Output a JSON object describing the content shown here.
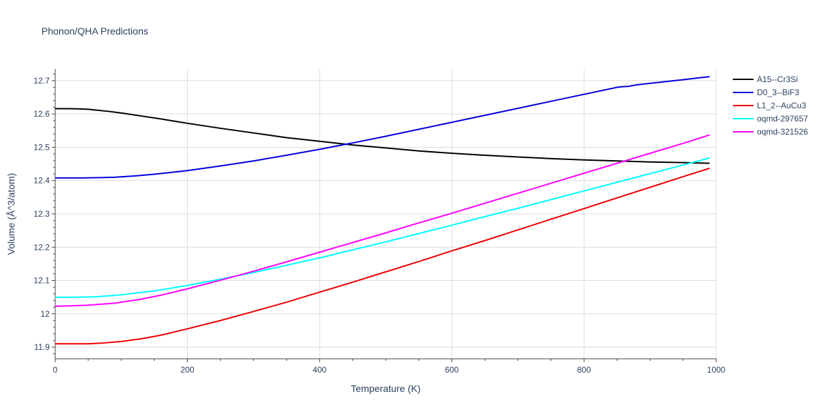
{
  "chart_data": {
    "type": "line",
    "title": "Phonon/QHA Predictions",
    "xlabel": "Temperature (K)",
    "ylabel": "Volume (Å^3/atom)",
    "xlim": [
      0,
      1000
    ],
    "ylim": [
      11.865,
      12.735
    ],
    "xticks": [
      0,
      200,
      400,
      600,
      800,
      1000
    ],
    "xtick_labels": [
      "0",
      "200",
      "400",
      "600",
      "800",
      "1000"
    ],
    "yticks": [
      11.9,
      12.0,
      12.1,
      12.2,
      12.3,
      12.4,
      12.5,
      12.6,
      12.7
    ],
    "ytick_labels": [
      "11.9",
      "12",
      "12.1",
      "12.2",
      "12.3",
      "12.4",
      "12.5",
      "12.6",
      "12.7"
    ],
    "grid": true,
    "legend_position": "top-right",
    "series": [
      {
        "name": "A15--Cr3Si",
        "color": "#000000",
        "x": [
          0,
          20,
          40,
          50,
          60,
          80,
          100,
          130,
          160,
          200,
          250,
          300,
          350,
          400,
          450,
          500,
          550,
          600,
          650,
          700,
          750,
          800,
          850,
          900,
          950,
          990
        ],
        "y": [
          12.616,
          12.616,
          12.615,
          12.614,
          12.612,
          12.608,
          12.603,
          12.594,
          12.585,
          12.572,
          12.557,
          12.543,
          12.529,
          12.518,
          12.507,
          12.498,
          12.489,
          12.482,
          12.476,
          12.471,
          12.466,
          12.462,
          12.459,
          12.456,
          12.454,
          12.452
        ]
      },
      {
        "name": "D0_3--BiF3",
        "color": "#0000dd",
        "x": [
          0,
          40,
          70,
          90,
          120,
          150,
          200,
          250,
          300,
          350,
          400,
          450,
          500,
          550,
          600,
          650,
          700,
          750,
          800,
          850,
          858,
          868,
          878,
          900,
          950,
          990
        ],
        "y": [
          12.408,
          12.408,
          12.409,
          12.41,
          12.414,
          12.419,
          12.43,
          12.444,
          12.459,
          12.476,
          12.494,
          12.513,
          12.533,
          12.554,
          12.575,
          12.596,
          12.617,
          12.638,
          12.659,
          12.68,
          12.682,
          12.683,
          12.687,
          12.692,
          12.703,
          12.712
        ]
      },
      {
        "name": "L1_2--AuCu3",
        "color": "#ee0000",
        "x": [
          0,
          30,
          50,
          70,
          100,
          130,
          160,
          200,
          250,
          300,
          350,
          400,
          450,
          500,
          550,
          600,
          650,
          700,
          750,
          800,
          850,
          900,
          950,
          990
        ],
        "y": [
          11.91,
          11.91,
          11.91,
          11.912,
          11.917,
          11.925,
          11.936,
          11.955,
          11.98,
          12.007,
          12.035,
          12.065,
          12.095,
          12.126,
          12.157,
          12.189,
          12.22,
          12.252,
          12.284,
          12.316,
          12.348,
          12.38,
          12.412,
          12.437
        ]
      },
      {
        "name": "oqmd-297657",
        "color": "#00ffff",
        "x": [
          0,
          30,
          60,
          100,
          150,
          200,
          250,
          300,
          350,
          400,
          450,
          500,
          550,
          600,
          650,
          700,
          750,
          800,
          850,
          900,
          950,
          990
        ],
        "y": [
          12.05,
          12.05,
          12.051,
          12.057,
          12.069,
          12.085,
          12.104,
          12.124,
          12.146,
          12.168,
          12.192,
          12.216,
          12.241,
          12.266,
          12.292,
          12.317,
          12.343,
          12.369,
          12.395,
          12.421,
          12.447,
          12.468
        ]
      },
      {
        "name": "oqmd-321526",
        "color": "#ff00ff",
        "x": [
          0,
          25,
          50,
          90,
          130,
          160,
          200,
          250,
          300,
          350,
          400,
          450,
          500,
          550,
          600,
          650,
          700,
          750,
          800,
          850,
          900,
          950,
          990
        ],
        "y": [
          12.023,
          12.024,
          12.026,
          12.032,
          12.044,
          12.056,
          12.075,
          12.101,
          12.128,
          12.156,
          12.185,
          12.214,
          12.243,
          12.273,
          12.302,
          12.332,
          12.362,
          12.392,
          12.422,
          12.452,
          12.482,
          12.512,
          12.537
        ]
      }
    ]
  }
}
